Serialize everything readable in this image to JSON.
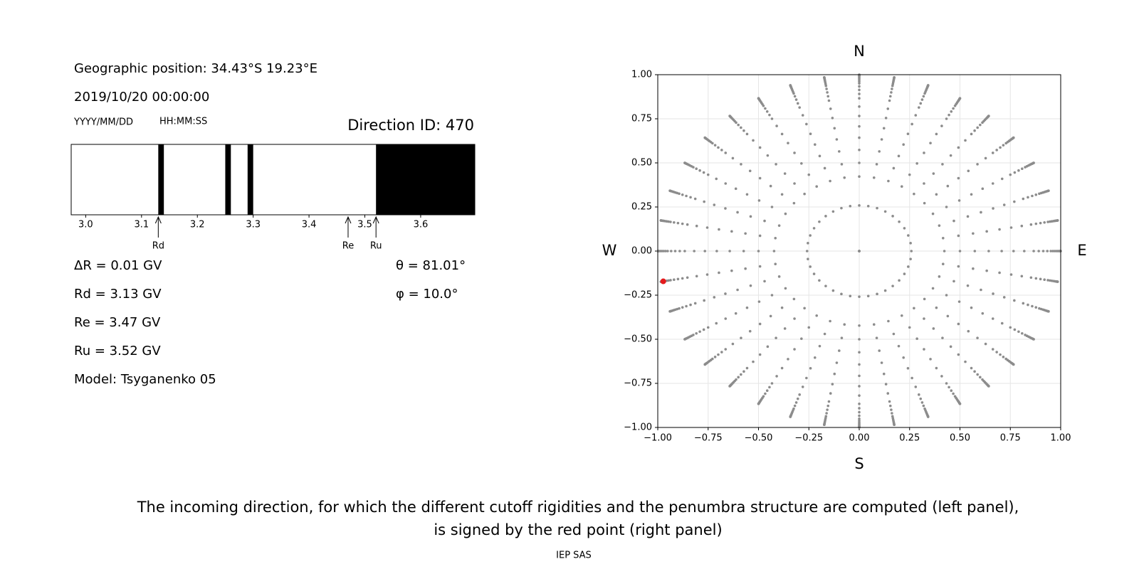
{
  "info": {
    "position": "Geographic position: 34.43°S 19.23°E",
    "datetime": "2019/10/20 00:00:00",
    "date_format": "YYYY/MM/DD",
    "time_format": "HH:MM:SS",
    "direction": "Direction ID: 470",
    "delta_r": "ΔR = 0.01 GV",
    "rd": "Rd = 3.13 GV",
    "re": "Re = 3.47 GV",
    "ru": "Ru = 3.52 GV",
    "model": "Model: Tsyganenko 05",
    "theta": "θ = 81.01°",
    "phi": "φ = 10.0°"
  },
  "chart_data": [
    {
      "type": "penumbra",
      "xlim": [
        2.974,
        3.697
      ],
      "xticks": [
        {
          "value": 3.0,
          "label": "3.0"
        },
        3.1,
        3.2,
        3.3,
        3.4,
        3.5,
        3.6
      ],
      "forbidden": [
        [
          3.13,
          3.14
        ],
        [
          3.25,
          3.26
        ],
        [
          3.29,
          3.3
        ],
        [
          3.52,
          3.697
        ]
      ],
      "color": "#000000",
      "markers": [
        {
          "label": "Rd",
          "value": 3.13
        },
        {
          "label": "Re",
          "value": 3.47
        },
        {
          "label": "Ru",
          "value": 3.52
        }
      ]
    },
    {
      "type": "scatter",
      "zenith": [
        0,
        15,
        25,
        30,
        35,
        40,
        45,
        50,
        55,
        60,
        63,
        66,
        69,
        72,
        74,
        76,
        78,
        80,
        82,
        84,
        86,
        88,
        90
      ],
      "azimuth": [
        0,
        10,
        20,
        30,
        40,
        50,
        60,
        70,
        80,
        90,
        100,
        110,
        120,
        130,
        140,
        150,
        160,
        170,
        180,
        190,
        200,
        210,
        220,
        230,
        240,
        250,
        260,
        270,
        280,
        290,
        300,
        310,
        320,
        330,
        340,
        350
      ],
      "color": "#8c8c8c",
      "highlight": {
        "zenith": 81.01,
        "azimuth": 10.0,
        "color": "#e41a1c"
      },
      "xlim": [
        -1,
        1
      ],
      "ylim": [
        -1,
        1
      ],
      "xticks": [
        {
          "value": -1,
          "label": "−1.00"
        },
        {
          "value": -0.75,
          "label": "−0.75"
        },
        {
          "value": -0.5,
          "label": "−0.50"
        },
        {
          "value": -0.25,
          "label": "−0.25"
        },
        {
          "value": 0,
          "label": "0.00"
        },
        {
          "value": 0.25,
          "label": "0.25"
        },
        {
          "value": 0.5,
          "label": "0.50"
        },
        {
          "value": 0.75,
          "label": "0.75"
        },
        {
          "value": 1,
          "label": "1.00"
        }
      ],
      "yticks": [
        {
          "value": -1,
          "label": "−1.00"
        },
        {
          "value": -0.75,
          "label": "−0.75"
        },
        {
          "value": -0.5,
          "label": "−0.50"
        },
        {
          "value": -0.25,
          "label": "−0.25"
        },
        {
          "value": 0,
          "label": "0.00"
        },
        {
          "value": 0.25,
          "label": "0.25"
        },
        {
          "value": 0.5,
          "label": "0.50"
        },
        {
          "value": 0.75,
          "label": "0.75"
        },
        {
          "value": 1,
          "label": "1.00"
        }
      ],
      "grid": true,
      "compass": {
        "north": "N",
        "south": "S",
        "west": "W",
        "east": "E"
      }
    }
  ],
  "caption": [
    "The incoming direction, for which the different cutoff rigidities and the penumbra structure are computed (left panel),",
    "is signed by the red point (right panel)"
  ],
  "footer": "IEP SAS"
}
